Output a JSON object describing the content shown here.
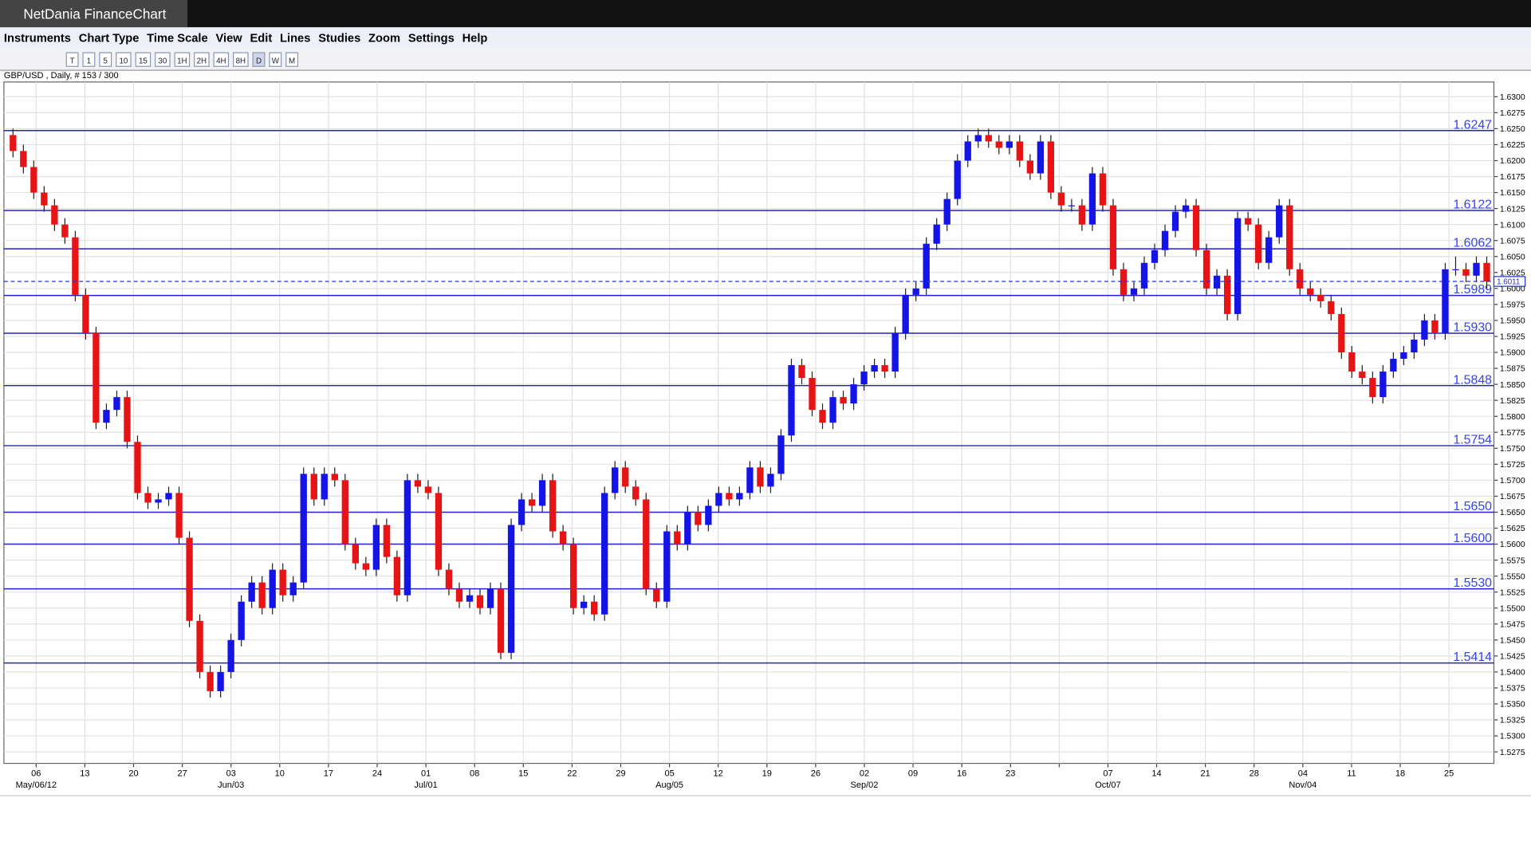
{
  "window": {
    "title": "NetDania FinanceChart"
  },
  "menu": [
    "Instruments",
    "Chart Type",
    "Time Scale",
    "View",
    "Edit",
    "Lines",
    "Studies",
    "Zoom",
    "Settings",
    "Help"
  ],
  "toolbar": [
    "T",
    "1",
    "5",
    "10",
    "15",
    "30",
    "1H",
    "2H",
    "4H",
    "8H",
    "D",
    "W",
    "M"
  ],
  "chart_data": {
    "type": "candlestick",
    "title": "GBP/USD , Daily, # 153 / 300",
    "up_color": "#1414e6",
    "down_color": "#e61414",
    "level_color": "#2222cc",
    "ylim": [
      1.5257,
      1.6323
    ],
    "yticks": [
      1.5275,
      {
        "value": 1.53,
        "label": "1.5300"
      },
      1.5325,
      {
        "value": 1.535,
        "label": "1.5350"
      },
      1.5375,
      {
        "value": 1.54,
        "label": "1.5400"
      },
      1.5425,
      {
        "value": 1.545,
        "label": "1.5450"
      },
      1.5475,
      {
        "value": 1.55,
        "label": "1.5500"
      },
      1.5525,
      {
        "value": 1.555,
        "label": "1.5550"
      },
      1.5575,
      {
        "value": 1.56,
        "label": "1.5600"
      },
      1.5625,
      {
        "value": 1.565,
        "label": "1.5650"
      },
      1.5675,
      {
        "value": 1.57,
        "label": "1.5700"
      },
      1.5725,
      {
        "value": 1.575,
        "label": "1.5750"
      },
      1.5775,
      {
        "value": 1.58,
        "label": "1.5800"
      },
      1.5825,
      {
        "value": 1.585,
        "label": "1.5850"
      },
      1.5875,
      {
        "value": 1.59,
        "label": "1.5900"
      },
      1.5925,
      {
        "value": 1.595,
        "label": "1.5950"
      },
      1.5975,
      {
        "value": 1.6,
        "label": "1.6000"
      },
      1.6025,
      {
        "value": 1.605,
        "label": "1.6050"
      },
      1.6075,
      {
        "value": 1.61,
        "label": "1.6100"
      },
      1.6125,
      {
        "value": 1.615,
        "label": "1.6150"
      },
      1.6175,
      {
        "value": 1.62,
        "label": "1.6200"
      },
      1.6225,
      {
        "value": 1.625,
        "label": "1.6250"
      },
      1.6275,
      {
        "value": 1.63,
        "label": "1.6300"
      }
    ],
    "levels": [
      1.6247,
      1.6122,
      1.6062,
      1.5989,
      {
        "value": 1.593,
        "label": "1.5930"
      },
      1.5848,
      1.5754,
      {
        "value": 1.565,
        "label": "1.5650"
      },
      {
        "value": 1.56,
        "label": "1.5600"
      },
      {
        "value": 1.553,
        "label": "1.5530"
      },
      1.5414
    ],
    "x_days": [
      "06",
      "13",
      "20",
      "27",
      "03",
      "10",
      "17",
      "24",
      "01",
      "08",
      "15",
      "22",
      "29",
      "05",
      "12",
      "19",
      "26",
      "02",
      "09",
      "16",
      "23",
      null,
      "07",
      "14",
      "21",
      "28",
      "04",
      "11",
      "18",
      "25"
    ],
    "x_months": [
      "May/06/12",
      null,
      null,
      null,
      "Jun/03",
      null,
      null,
      null,
      "Jul/01",
      null,
      null,
      null,
      null,
      "Aug/05",
      null,
      null,
      null,
      "Sep/02",
      null,
      null,
      null,
      null,
      "Oct/07",
      null,
      null,
      null,
      "Nov/04",
      null,
      null,
      null
    ],
    "candles": [
      [
        1.624,
        1.625,
        1.6205,
        1.6215
      ],
      [
        1.6215,
        1.6225,
        1.618,
        1.619
      ],
      [
        1.619,
        1.62,
        1.614,
        1.615
      ],
      [
        1.615,
        1.616,
        1.612,
        1.613
      ],
      [
        1.613,
        1.614,
        1.609,
        1.61
      ],
      [
        1.61,
        1.611,
        1.607,
        1.608
      ],
      [
        1.608,
        1.609,
        1.598,
        1.599
      ],
      [
        1.599,
        1.6,
        1.592,
        1.593
      ],
      [
        1.593,
        1.594,
        1.578,
        1.579
      ],
      [
        1.579,
        1.582,
        1.578,
        1.581
      ],
      [
        1.581,
        1.584,
        1.58,
        1.583
      ],
      [
        1.583,
        1.584,
        1.575,
        1.576
      ],
      [
        1.576,
        1.577,
        1.567,
        1.568
      ],
      [
        1.568,
        1.569,
        1.5655,
        1.5665
      ],
      [
        1.5665,
        1.568,
        1.5655,
        1.567
      ],
      [
        1.567,
        1.569,
        1.566,
        1.568
      ],
      [
        1.568,
        1.569,
        1.56,
        1.561
      ],
      [
        1.561,
        1.562,
        1.547,
        1.548
      ],
      [
        1.548,
        1.549,
        1.539,
        1.54
      ],
      [
        1.54,
        1.541,
        1.536,
        1.537
      ],
      [
        1.537,
        1.541,
        1.536,
        1.54
      ],
      [
        1.54,
        1.546,
        1.539,
        1.545
      ],
      [
        1.545,
        1.552,
        1.544,
        1.551
      ],
      [
        1.551,
        1.555,
        1.55,
        1.554
      ],
      [
        1.554,
        1.555,
        1.549,
        1.55
      ],
      [
        1.55,
        1.557,
        1.549,
        1.556
      ],
      [
        1.556,
        1.557,
        1.551,
        1.552
      ],
      [
        1.552,
        1.555,
        1.551,
        1.554
      ],
      [
        1.554,
        1.572,
        1.553,
        1.571
      ],
      [
        1.571,
        1.572,
        1.566,
        1.567
      ],
      [
        1.567,
        1.572,
        1.566,
        1.571
      ],
      [
        1.571,
        1.572,
        1.569,
        1.57
      ],
      [
        1.57,
        1.571,
        1.559,
        1.56
      ],
      [
        1.56,
        1.561,
        1.556,
        1.557
      ],
      [
        1.557,
        1.558,
        1.555,
        1.556
      ],
      [
        1.556,
        1.564,
        1.555,
        1.563
      ],
      [
        1.563,
        1.564,
        1.557,
        1.558
      ],
      [
        1.558,
        1.559,
        1.551,
        1.552
      ],
      [
        1.552,
        1.571,
        1.551,
        1.57
      ],
      [
        1.57,
        1.571,
        1.568,
        1.569
      ],
      [
        1.569,
        1.57,
        1.567,
        1.568
      ],
      [
        1.568,
        1.569,
        1.555,
        1.556
      ],
      [
        1.556,
        1.557,
        1.552,
        1.553
      ],
      [
        1.553,
        1.554,
        1.55,
        1.551
      ],
      [
        1.551,
        1.553,
        1.55,
        1.552
      ],
      [
        1.552,
        1.553,
        1.549,
        1.55
      ],
      [
        1.55,
        1.554,
        1.549,
        1.553
      ],
      [
        1.553,
        1.554,
        1.542,
        1.543
      ],
      [
        1.543,
        1.564,
        1.542,
        1.563
      ],
      [
        1.563,
        1.568,
        1.562,
        1.567
      ],
      [
        1.567,
        1.568,
        1.565,
        1.566
      ],
      [
        1.566,
        1.571,
        1.565,
        1.57
      ],
      [
        1.57,
        1.571,
        1.561,
        1.562
      ],
      [
        1.562,
        1.563,
        1.559,
        1.56
      ],
      [
        1.56,
        1.561,
        1.549,
        1.55
      ],
      [
        1.55,
        1.552,
        1.549,
        1.551
      ],
      [
        1.551,
        1.552,
        1.548,
        1.549
      ],
      [
        1.549,
        1.569,
        1.548,
        1.568
      ],
      [
        1.568,
        1.573,
        1.567,
        1.572
      ],
      [
        1.572,
        1.573,
        1.568,
        1.569
      ],
      [
        1.569,
        1.57,
        1.566,
        1.567
      ],
      [
        1.567,
        1.568,
        1.552,
        1.553
      ],
      [
        1.553,
        1.554,
        1.55,
        1.551
      ],
      [
        1.551,
        1.563,
        1.55,
        1.562
      ],
      [
        1.562,
        1.563,
        1.559,
        1.56
      ],
      [
        1.56,
        1.566,
        1.559,
        1.565
      ],
      [
        1.565,
        1.566,
        1.562,
        1.563
      ],
      [
        1.563,
        1.567,
        1.562,
        1.566
      ],
      [
        1.566,
        1.569,
        1.565,
        1.568
      ],
      [
        1.568,
        1.569,
        1.566,
        1.567
      ],
      [
        1.567,
        1.569,
        1.566,
        1.568
      ],
      [
        1.568,
        1.573,
        1.567,
        1.572
      ],
      [
        1.572,
        1.573,
        1.568,
        1.569
      ],
      [
        1.569,
        1.572,
        1.568,
        1.571
      ],
      [
        1.571,
        1.578,
        1.57,
        1.577
      ],
      [
        1.577,
        1.589,
        1.576,
        1.588
      ],
      [
        1.588,
        1.589,
        1.585,
        1.586
      ],
      [
        1.586,
        1.587,
        1.58,
        1.581
      ],
      [
        1.581,
        1.582,
        1.578,
        1.579
      ],
      [
        1.579,
        1.584,
        1.578,
        1.583
      ],
      [
        1.583,
        1.584,
        1.581,
        1.582
      ],
      [
        1.582,
        1.586,
        1.581,
        1.585
      ],
      [
        1.585,
        1.588,
        1.584,
        1.587
      ],
      [
        1.587,
        1.589,
        1.586,
        1.588
      ],
      [
        1.588,
        1.589,
        1.586,
        1.587
      ],
      [
        1.587,
        1.594,
        1.586,
        1.593
      ],
      [
        1.593,
        1.6,
        1.592,
        1.599
      ],
      [
        1.599,
        1.601,
        1.598,
        1.6
      ],
      [
        1.6,
        1.608,
        1.599,
        1.607
      ],
      [
        1.607,
        1.611,
        1.606,
        1.61
      ],
      [
        1.61,
        1.615,
        1.609,
        1.614
      ],
      [
        1.614,
        1.621,
        1.613,
        1.62
      ],
      [
        1.62,
        1.624,
        1.619,
        1.623
      ],
      [
        1.623,
        1.625,
        1.622,
        1.624
      ],
      [
        1.624,
        1.625,
        1.622,
        1.623
      ],
      [
        1.623,
        1.624,
        1.621,
        1.622
      ],
      [
        1.622,
        1.624,
        1.621,
        1.623
      ],
      [
        1.623,
        1.624,
        1.619,
        1.62
      ],
      [
        1.62,
        1.621,
        1.617,
        1.618
      ],
      [
        1.618,
        1.624,
        1.617,
        1.623
      ],
      [
        1.623,
        1.624,
        1.614,
        1.615
      ],
      [
        1.615,
        1.616,
        1.612,
        1.613
      ],
      [
        1.613,
        1.614,
        1.612,
        1.613
      ],
      [
        1.613,
        1.614,
        1.609,
        1.61
      ],
      [
        1.61,
        1.619,
        1.609,
        1.618
      ],
      [
        1.618,
        1.619,
        1.612,
        1.613
      ],
      [
        1.613,
        1.614,
        1.602,
        1.603
      ],
      [
        1.603,
        1.604,
        1.598,
        1.599
      ],
      [
        1.599,
        1.601,
        1.598,
        1.6
      ],
      [
        1.6,
        1.605,
        1.599,
        1.604
      ],
      [
        1.604,
        1.607,
        1.603,
        1.606
      ],
      [
        1.606,
        1.61,
        1.605,
        1.609
      ],
      [
        1.609,
        1.613,
        1.608,
        1.612
      ],
      [
        1.612,
        1.614,
        1.611,
        1.613
      ],
      [
        1.613,
        1.614,
        1.605,
        1.606
      ],
      [
        1.606,
        1.607,
        1.599,
        1.6
      ],
      [
        1.6,
        1.603,
        1.599,
        1.602
      ],
      [
        1.602,
        1.603,
        1.595,
        1.596
      ],
      [
        1.596,
        1.612,
        1.595,
        1.611
      ],
      [
        1.611,
        1.612,
        1.609,
        1.61
      ],
      [
        1.61,
        1.611,
        1.603,
        1.604
      ],
      [
        1.604,
        1.609,
        1.603,
        1.608
      ],
      [
        1.608,
        1.614,
        1.607,
        1.613
      ],
      [
        1.613,
        1.614,
        1.602,
        1.603
      ],
      [
        1.603,
        1.604,
        1.599,
        1.6
      ],
      [
        1.6,
        1.601,
        1.598,
        1.599
      ],
      [
        1.599,
        1.6,
        1.597,
        1.598
      ],
      [
        1.598,
        1.599,
        1.595,
        1.596
      ],
      [
        1.596,
        1.597,
        1.589,
        1.59
      ],
      [
        1.59,
        1.591,
        1.586,
        1.587
      ],
      [
        1.587,
        1.588,
        1.585,
        1.586
      ],
      [
        1.586,
        1.587,
        1.582,
        1.583
      ],
      [
        1.583,
        1.588,
        1.582,
        1.587
      ],
      [
        1.587,
        1.59,
        1.586,
        1.589
      ],
      [
        1.589,
        1.591,
        1.588,
        1.59
      ],
      [
        1.59,
        1.593,
        1.589,
        1.592
      ],
      [
        1.592,
        1.596,
        1.591,
        1.595
      ],
      [
        1.595,
        1.596,
        1.592,
        1.593
      ],
      [
        1.593,
        1.604,
        1.592,
        1.603
      ],
      [
        1.603,
        1.605,
        1.602,
        1.603
      ],
      [
        1.603,
        1.604,
        1.601,
        1.602
      ],
      [
        1.602,
        1.605,
        1.601,
        1.604
      ],
      [
        1.604,
        1.605,
        1.6,
        1.6011
      ]
    ]
  }
}
